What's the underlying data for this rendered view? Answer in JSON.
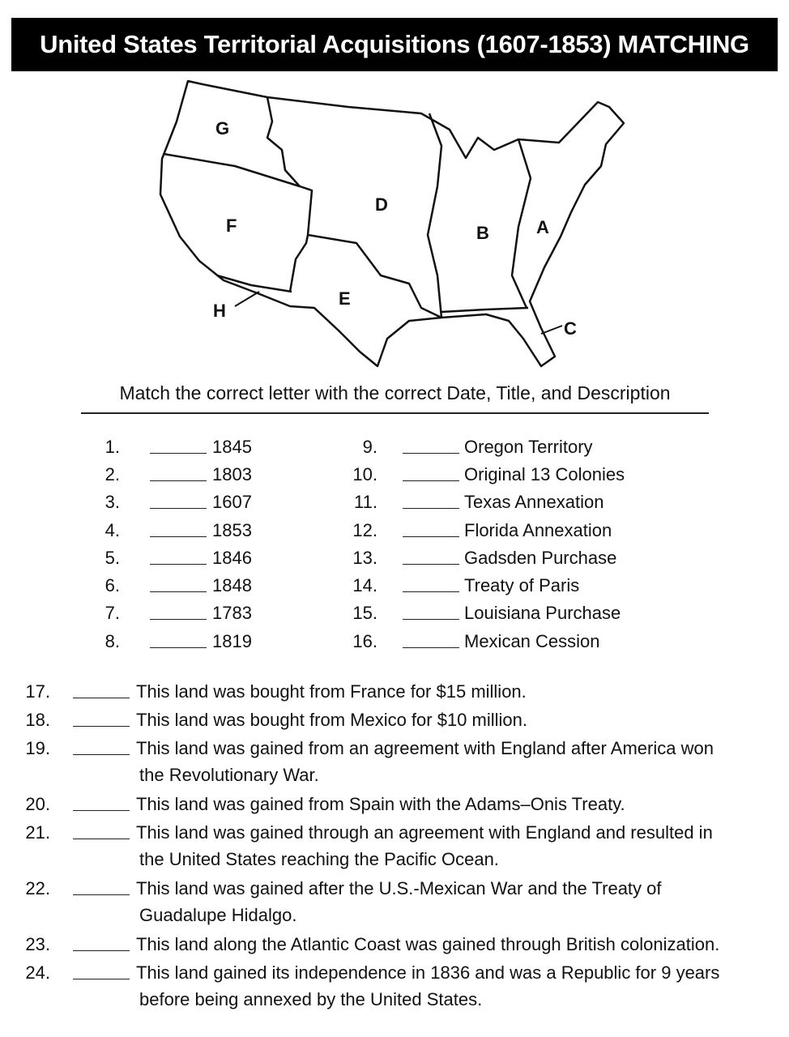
{
  "title": "United States Territorial Acquisitions (1607-1853) MATCHING",
  "map": {
    "labels": [
      "G",
      "F",
      "D",
      "B",
      "A",
      "E",
      "H",
      "C"
    ]
  },
  "subtitle": "Match the correct letter with the correct Date, Title, and Description",
  "dates": [
    {
      "num": "1.",
      "text": "1845"
    },
    {
      "num": "2.",
      "text": "1803"
    },
    {
      "num": "3.",
      "text": "1607"
    },
    {
      "num": "4.",
      "text": "1853"
    },
    {
      "num": "5.",
      "text": "1846"
    },
    {
      "num": "6.",
      "text": "1848"
    },
    {
      "num": "7.",
      "text": "1783"
    },
    {
      "num": "8.",
      "text": "1819"
    }
  ],
  "titles": [
    {
      "num": "9.",
      "text": "Oregon Territory"
    },
    {
      "num": "10.",
      "text": "Original 13 Colonies"
    },
    {
      "num": "11.",
      "text": "Texas Annexation"
    },
    {
      "num": "12.",
      "text": "Florida Annexation"
    },
    {
      "num": "13.",
      "text": "Gadsden Purchase"
    },
    {
      "num": "14.",
      "text": "Treaty of Paris"
    },
    {
      "num": "15.",
      "text": "Louisiana Purchase"
    },
    {
      "num": "16.",
      "text": "Mexican Cession"
    }
  ],
  "descriptions": [
    {
      "num": "17.",
      "lines": [
        "This land was bought from France for $15 million."
      ]
    },
    {
      "num": "18.",
      "lines": [
        "This land was bought from Mexico for $10 million."
      ]
    },
    {
      "num": "19.",
      "lines": [
        "This land was gained from an agreement with England after America won",
        "the Revolutionary War."
      ]
    },
    {
      "num": "20.",
      "lines": [
        "This land was gained from Spain with the Adams–Onis Treaty."
      ]
    },
    {
      "num": "21.",
      "lines": [
        "This land was gained through an agreement with England and resulted in",
        "the United States reaching the Pacific Ocean."
      ]
    },
    {
      "num": "22.",
      "lines": [
        "This land was gained after the U.S.-Mexican War and the Treaty of",
        "Guadalupe Hidalgo."
      ]
    },
    {
      "num": "23.",
      "lines": [
        "This land along the Atlantic Coast was gained through British colonization."
      ]
    },
    {
      "num": "24.",
      "lines": [
        "This land gained its independence in 1836 and was a Republic for 9 years",
        "before being annexed by the United States."
      ]
    }
  ]
}
